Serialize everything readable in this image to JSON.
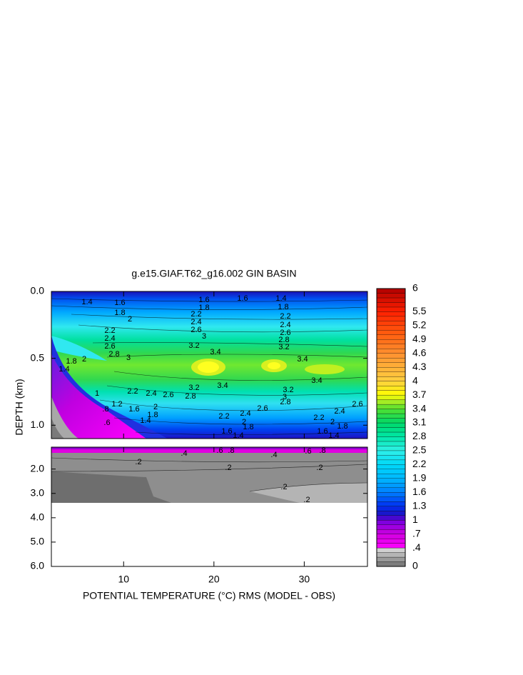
{
  "chart_data": {
    "type": "contour",
    "title": "g.e15.GIAF.T62_g16.002 GIN BASIN",
    "xlabel": "POTENTIAL TEMPERATURE (°C) RMS (MODEL - OBS)",
    "ylabel": "DEPTH (km)",
    "xlim": [
      2,
      37
    ],
    "xticks": [
      10,
      20,
      30
    ],
    "panels": [
      {
        "ylim": [
          0,
          1.1
        ],
        "yticks": [
          {
            "value": 0,
            "label": "0.0"
          },
          {
            "value": 0.5,
            "label": "0.5"
          },
          {
            "value": 1,
            "label": "1.0"
          }
        ]
      },
      {
        "ylim": [
          1.1,
          6
        ],
        "yticks": [
          {
            "value": 2,
            "label": "2.0"
          },
          {
            "value": 3,
            "label": "3.0"
          },
          {
            "value": 4,
            "label": "4.0"
          },
          {
            "value": 5,
            "label": "5.0"
          },
          {
            "value": 6,
            "label": "6.0"
          }
        ]
      }
    ],
    "colorbar": {
      "lim": [
        0,
        6
      ],
      "ticks": [
        6,
        5.5,
        5.2,
        4.9,
        4.6,
        4.3,
        4,
        3.7,
        3.4,
        3.1,
        2.8,
        2.5,
        2.2,
        1.9,
        1.6,
        1.3,
        1,
        {
          "value": 0.7,
          "label": ".7"
        },
        {
          "value": 0.4,
          "label": ".4"
        },
        0
      ]
    },
    "contour_labels": [
      "1.4",
      "1.6",
      "1.8",
      "2",
      "1.6",
      "1.8",
      "2.2",
      "2.4",
      "2.6",
      "3",
      "3.2",
      "3.4",
      "1.6",
      "1.4",
      "1.8",
      "2.2",
      "2.4",
      "2.6",
      "2.8",
      "3.2",
      "3.4",
      "3.4",
      "3.4",
      "3.2",
      "3.2",
      "3",
      "2.8",
      "2.8",
      "2.6",
      "2.4",
      "2.2",
      "2.2",
      "2.4",
      "2.6",
      "2.8",
      "3",
      "2.6",
      "2.4",
      "2.2",
      "2",
      "1.8",
      "1.6",
      "1.4",
      "2.6",
      "2.4",
      "2.2",
      "2",
      "1.8",
      "1.6",
      "1.4",
      "1",
      "1.2",
      "1.4",
      "1.6",
      "1.8",
      "2",
      ".8",
      ".6",
      "1.8",
      "2",
      "1.4",
      ".4",
      ".6",
      ".8",
      ".4",
      ".6",
      ".8",
      ".2",
      ".2",
      ".2",
      ".2",
      ".2"
    ]
  }
}
